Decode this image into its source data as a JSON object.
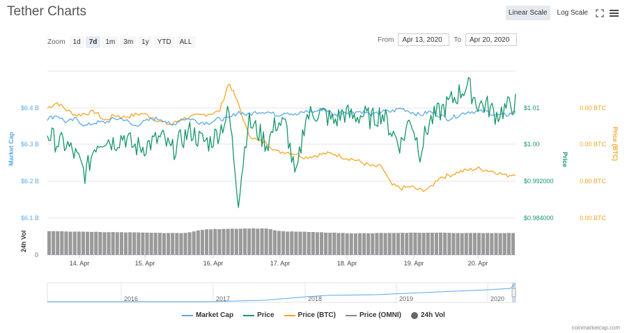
{
  "title": "Tether Charts",
  "scale_buttons": {
    "linear": "Linear Scale",
    "log": "Log Scale"
  },
  "zoom": {
    "label": "Zoom",
    "options": [
      "1d",
      "7d",
      "1m",
      "3m",
      "1y",
      "YTD",
      "ALL"
    ],
    "active": "7d"
  },
  "range": {
    "from_label": "From",
    "from_value": "Apr 13, 2020",
    "to_label": "To",
    "to_value": "Apr 20, 2020"
  },
  "credits": "coinmarketcap.com",
  "colors": {
    "market_cap": "#5aa9e6",
    "price": "#16956b",
    "price_btc": "#f5a623",
    "price_omni": "#888888",
    "vol": "#9a9a9a"
  },
  "chart_data": {
    "type": "line",
    "x_ticks": [
      "14. Apr",
      "15. Apr",
      "16. Apr",
      "17. Apr",
      "18. Apr",
      "19. Apr",
      "20. Apr"
    ],
    "axes": {
      "market_cap": {
        "label": "Market Cap",
        "ticks": [
          "$6.4 B",
          "$6.3 B",
          "$6.2 B",
          "$6.1 B"
        ],
        "values": [
          6.4,
          6.3,
          6.2,
          6.1
        ]
      },
      "price": {
        "label": "Price",
        "ticks": [
          "$1.01",
          "$1.00",
          "$0.992000",
          "$0.984000"
        ],
        "values": [
          1.008,
          1.0,
          0.992,
          0.984
        ]
      },
      "price_btc": {
        "label": "Price (BTC)",
        "ticks": [
          "0.00 BTC",
          "0.00 BTC",
          "0.00 BTC",
          "0.00 BTC"
        ]
      },
      "vol": {
        "label": "24h Vol",
        "ticks": [
          "0"
        ]
      }
    },
    "series": [
      {
        "name": "Market Cap",
        "values": [
          6.37,
          6.38,
          6.36,
          6.37,
          6.35,
          6.36,
          6.36,
          6.37,
          6.37,
          6.35,
          6.36,
          6.37,
          6.37,
          6.35,
          6.37,
          6.37,
          6.36,
          6.36,
          6.37,
          6.37,
          6.39,
          6.38,
          6.39,
          6.39,
          6.38,
          6.39,
          6.38,
          6.39,
          6.39,
          6.4,
          6.38,
          6.39,
          6.39,
          6.39,
          6.38,
          6.39,
          6.39,
          6.4,
          6.39,
          6.38,
          6.39,
          6.38,
          6.37,
          6.38,
          6.39,
          6.39,
          6.39,
          6.38,
          6.38,
          6.39
        ]
      },
      {
        "name": "Price",
        "values": [
          1.0025,
          1.0005,
          1.0,
          0.9975,
          0.9935,
          1.0,
          1.0015,
          1.0005,
          1.002,
          0.9995,
          0.9995,
          1.0005,
          1.0015,
          0.9985,
          1.001,
          1.003,
          1.001,
          1.0005,
          1.003,
          1.007,
          0.988,
          1.005,
          1.003,
          1.0,
          1.005,
          1.004,
          0.992,
          1.006,
          1.007,
          1.0065,
          1.005,
          1.007,
          1.006,
          1.0065,
          1.0055,
          1.007,
          1.003,
          1.0,
          1.006,
          0.9985,
          1.005,
          1.007,
          1.009,
          1.011,
          1.013,
          1.009,
          1.0085,
          1.0065,
          1.008,
          1.009
        ]
      },
      {
        "name": "Price (BTC)",
        "values": [
          7.2,
          7.35,
          7.15,
          7.0,
          7.05,
          7.1,
          6.85,
          7.0,
          6.95,
          7.0,
          7.05,
          6.95,
          6.8,
          6.75,
          6.9,
          6.95,
          7.0,
          7.05,
          7.1,
          7.9,
          7.3,
          6.5,
          6.3,
          6.25,
          6.0,
          6.0,
          5.95,
          5.85,
          5.9,
          5.95,
          5.95,
          5.85,
          5.8,
          5.7,
          5.6,
          5.6,
          5.1,
          5.0,
          5.05,
          4.95,
          5.0,
          5.3,
          5.35,
          5.45,
          5.5,
          5.55,
          5.5,
          5.45,
          5.35,
          5.4
        ]
      },
      {
        "name": "Price (OMNI)",
        "values": []
      },
      {
        "name": "24h Vol",
        "values": [
          0.83,
          0.83,
          0.82,
          0.82,
          0.81,
          0.81,
          0.8,
          0.8,
          0.79,
          0.79,
          0.78,
          0.78,
          0.77,
          0.77,
          0.77,
          0.8,
          0.88,
          0.9,
          0.91,
          0.92,
          0.92,
          0.93,
          0.93,
          0.93,
          0.85,
          0.82,
          0.82,
          0.81,
          0.8,
          0.79,
          0.78,
          0.77,
          0.76,
          0.76,
          0.76,
          0.77,
          0.77,
          0.77,
          0.78,
          0.78,
          0.78,
          0.78,
          0.78,
          0.77,
          0.77,
          0.77,
          0.77,
          0.77,
          0.77,
          0.77
        ]
      }
    ],
    "navigator": {
      "x_ticks": [
        "2016",
        "2017",
        "2018",
        "2019",
        "2020"
      ]
    },
    "legend": [
      "Market Cap",
      "Price",
      "Price (BTC)",
      "Price (OMNI)",
      "24h Vol"
    ],
    "grid": true
  }
}
